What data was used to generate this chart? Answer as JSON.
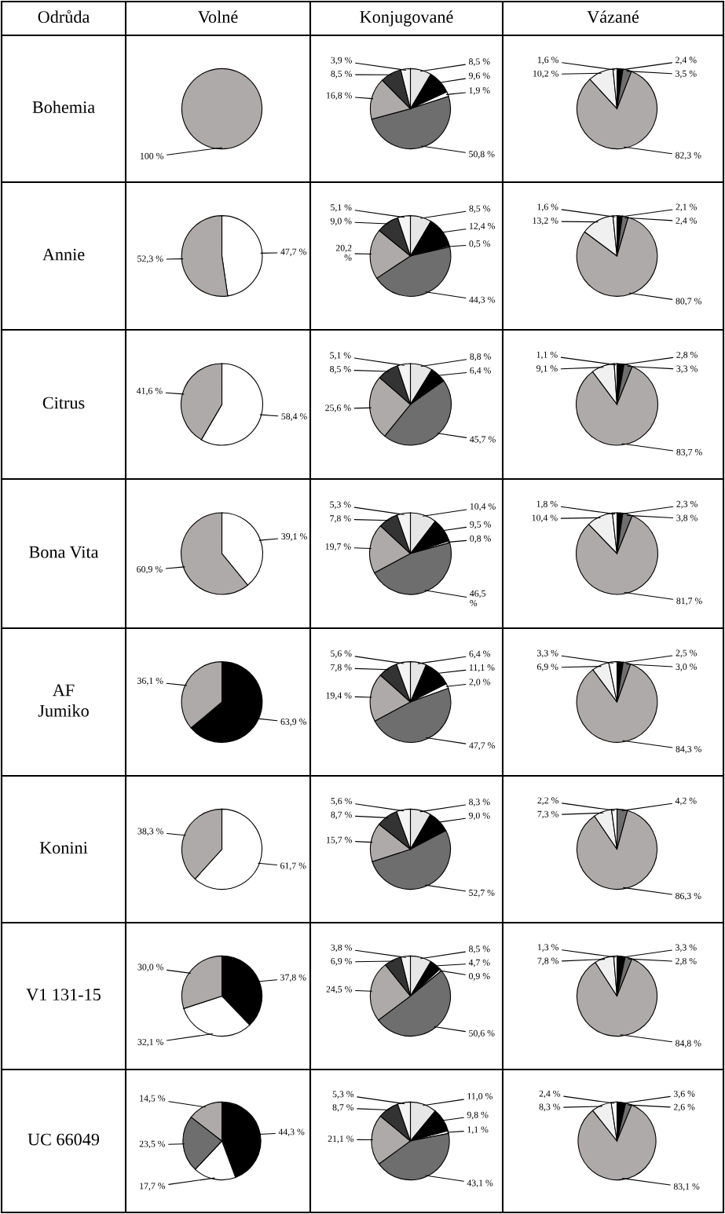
{
  "chart_data": [
    {
      "type": "other",
      "annotations": [
        "Odrůda",
        "Volné",
        "Konjugované",
        "Vázané",
        "Bohemia",
        "Annie",
        "Citrus",
        "Bona Vita",
        "AF\nJumiko",
        "Konini",
        "V1 131-15",
        "UC 66049"
      ]
    },
    {
      "type": "pie",
      "categories": [
        null
      ],
      "values": [
        100
      ],
      "colors": [
        "#aeaaaa"
      ],
      "value_labels": [
        "100 %"
      ]
    },
    {
      "type": "pie",
      "categories": [
        null,
        null,
        null,
        null,
        null,
        null,
        null
      ],
      "values": [
        8.5,
        9.6,
        1.9,
        50.8,
        16.8,
        8.5,
        3.9
      ],
      "colors": [
        "#e6e6e6",
        "#000000",
        "#ffffff",
        "#6e6e6e",
        "#aeaaaa",
        "#333333",
        "#f4f4f4"
      ],
      "value_labels": [
        "8,5 %",
        "9,6 %",
        "1,9 %",
        "50,8 %",
        "16,8 %",
        "8,5 %",
        "3,9 %"
      ]
    },
    {
      "type": "pie",
      "categories": [
        null,
        null,
        null,
        null,
        null
      ],
      "values": [
        2.4,
        3.5,
        82.3,
        10.2,
        1.6
      ],
      "colors": [
        "#000000",
        "#6e6e6e",
        "#aeaaaa",
        "#f0f0f0",
        "#ffffff"
      ],
      "value_labels": [
        "2,4 %",
        "3,5 %",
        "82,3 %",
        "10,2 %",
        "1,6 %"
      ]
    },
    {
      "type": "pie",
      "categories": [
        null,
        null
      ],
      "values": [
        47.7,
        52.3
      ],
      "colors": [
        "#ffffff",
        "#aeaaaa"
      ],
      "value_labels": [
        "47,7 %",
        "52,3 %"
      ]
    },
    {
      "type": "pie",
      "categories": [
        null,
        null,
        null,
        null,
        null,
        null,
        null
      ],
      "values": [
        8.5,
        12.4,
        0.5,
        44.3,
        20.2,
        9.0,
        5.1
      ],
      "colors": [
        "#e6e6e6",
        "#000000",
        "#ffffff",
        "#6e6e6e",
        "#aeaaaa",
        "#333333",
        "#f4f4f4"
      ],
      "value_labels": [
        "8,5 %",
        "12,4 %",
        "0,5 %",
        "44,3 %",
        "20,2\n%",
        "9,0 %",
        "5,1 %"
      ]
    },
    {
      "type": "pie",
      "categories": [
        null,
        null,
        null,
        null,
        null
      ],
      "values": [
        2.1,
        2.4,
        80.7,
        13.2,
        1.6
      ],
      "colors": [
        "#000000",
        "#6e6e6e",
        "#aeaaaa",
        "#f0f0f0",
        "#ffffff"
      ],
      "value_labels": [
        "2,1 %",
        "2,4 %",
        "80,7 %",
        "13,2 %",
        "1,6 %"
      ]
    },
    {
      "type": "pie",
      "categories": [
        null,
        null
      ],
      "values": [
        58.4,
        41.6
      ],
      "colors": [
        "#ffffff",
        "#aeaaaa"
      ],
      "value_labels": [
        "58,4 %",
        "41,6 %"
      ]
    },
    {
      "type": "pie",
      "categories": [
        null,
        null,
        null,
        null,
        null,
        null
      ],
      "values": [
        8.8,
        6.4,
        45.7,
        25.6,
        8.5,
        5.1
      ],
      "colors": [
        "#e6e6e6",
        "#000000",
        "#6e6e6e",
        "#aeaaaa",
        "#333333",
        "#f4f4f4"
      ],
      "value_labels": [
        "8,8 %",
        "6,4 %",
        "45,7 %",
        "25,6 %",
        "8,5 %",
        "5,1 %"
      ]
    },
    {
      "type": "pie",
      "categories": [
        null,
        null,
        null,
        null,
        null
      ],
      "values": [
        2.8,
        3.3,
        83.7,
        9.1,
        1.1
      ],
      "colors": [
        "#000000",
        "#6e6e6e",
        "#aeaaaa",
        "#f0f0f0",
        "#ffffff"
      ],
      "value_labels": [
        "2,8 %",
        "3,3 %",
        "83,7 %",
        "9,1 %",
        "1,1 %"
      ]
    },
    {
      "type": "pie",
      "categories": [
        null,
        null
      ],
      "values": [
        39.1,
        60.9
      ],
      "colors": [
        "#ffffff",
        "#aeaaaa"
      ],
      "value_labels": [
        "39,1 %",
        "60,9 %"
      ]
    },
    {
      "type": "pie",
      "categories": [
        null,
        null,
        null,
        null,
        null,
        null,
        null
      ],
      "values": [
        10.4,
        9.5,
        0.8,
        46.5,
        19.7,
        7.8,
        5.3
      ],
      "colors": [
        "#e6e6e6",
        "#000000",
        "#ffffff",
        "#6e6e6e",
        "#aeaaaa",
        "#333333",
        "#f4f4f4"
      ],
      "value_labels": [
        "10,4 %",
        "9,5 %",
        "0,8 %",
        "46,5\n%",
        "19,7 %",
        "7,8 %",
        "5,3 %"
      ]
    },
    {
      "type": "pie",
      "categories": [
        null,
        null,
        null,
        null,
        null
      ],
      "values": [
        2.3,
        3.8,
        81.7,
        10.4,
        1.8
      ],
      "colors": [
        "#000000",
        "#6e6e6e",
        "#aeaaaa",
        "#f0f0f0",
        "#ffffff"
      ],
      "value_labels": [
        "2,3 %",
        "3,8 %",
        "81,7 %",
        "10,4 %",
        "1,8 %"
      ]
    },
    {
      "type": "pie",
      "categories": [
        null,
        null
      ],
      "values": [
        63.9,
        36.1
      ],
      "colors": [
        "#000000",
        "#aeaaaa"
      ],
      "value_labels": [
        "63,9 %",
        "36,1 %"
      ]
    },
    {
      "type": "pie",
      "categories": [
        null,
        null,
        null,
        null,
        null,
        null,
        null
      ],
      "values": [
        6.4,
        11.1,
        2.0,
        47.7,
        19.4,
        7.8,
        5.6
      ],
      "colors": [
        "#e6e6e6",
        "#000000",
        "#ffffff",
        "#6e6e6e",
        "#aeaaaa",
        "#333333",
        "#f4f4f4"
      ],
      "value_labels": [
        "6,4 %",
        "11,1 %",
        "2,0 %",
        "47,7 %",
        "19,4 %",
        "7,8 %",
        "5,6 %"
      ]
    },
    {
      "type": "pie",
      "categories": [
        null,
        null,
        null,
        null,
        null
      ],
      "values": [
        2.5,
        3.0,
        84.3,
        6.9,
        3.3
      ],
      "colors": [
        "#000000",
        "#6e6e6e",
        "#aeaaaa",
        "#f0f0f0",
        "#ffffff"
      ],
      "value_labels": [
        "2,5 %",
        "3,0 %",
        "84,3 %",
        "6,9 %",
        "3,3 %"
      ]
    },
    {
      "type": "pie",
      "categories": [
        null,
        null
      ],
      "values": [
        61.7,
        38.3
      ],
      "colors": [
        "#ffffff",
        "#aeaaaa"
      ],
      "value_labels": [
        "61,7 %",
        "38,3 %"
      ]
    },
    {
      "type": "pie",
      "categories": [
        null,
        null,
        null,
        null,
        null,
        null
      ],
      "values": [
        8.3,
        9.0,
        52.7,
        15.7,
        8.7,
        5.6
      ],
      "colors": [
        "#e6e6e6",
        "#000000",
        "#6e6e6e",
        "#aeaaaa",
        "#333333",
        "#f4f4f4"
      ],
      "value_labels": [
        "8,3 %",
        "9,0 %",
        "52,7 %",
        "15,7 %",
        "8,7 %",
        "5,6 %"
      ]
    },
    {
      "type": "pie",
      "categories": [
        null,
        null,
        null,
        null
      ],
      "values": [
        4.2,
        86.3,
        7.3,
        2.2
      ],
      "colors": [
        "#6e6e6e",
        "#aeaaaa",
        "#f0f0f0",
        "#ffffff"
      ],
      "value_labels": [
        "4,2 %",
        "86,3 %",
        "7,3 %",
        "2,2 %"
      ]
    },
    {
      "type": "pie",
      "categories": [
        null,
        null,
        null
      ],
      "values": [
        37.8,
        32.1,
        30.0
      ],
      "colors": [
        "#000000",
        "#ffffff",
        "#aeaaaa"
      ],
      "value_labels": [
        "37,8 %",
        "32,1 %",
        "30,0 %"
      ]
    },
    {
      "type": "pie",
      "categories": [
        null,
        null,
        null,
        null,
        null,
        null,
        null
      ],
      "values": [
        8.5,
        4.7,
        0.9,
        50.6,
        24.5,
        6.9,
        3.8
      ],
      "colors": [
        "#e6e6e6",
        "#000000",
        "#ffffff",
        "#6e6e6e",
        "#aeaaaa",
        "#333333",
        "#f4f4f4"
      ],
      "value_labels": [
        "8,5 %",
        "4,7 %",
        "0,9 %",
        "50,6 %",
        "24,5 %",
        "6,9 %",
        "3,8 %"
      ]
    },
    {
      "type": "pie",
      "categories": [
        null,
        null,
        null,
        null,
        null
      ],
      "values": [
        3.3,
        2.8,
        84.8,
        7.8,
        1.3
      ],
      "colors": [
        "#000000",
        "#6e6e6e",
        "#aeaaaa",
        "#f0f0f0",
        "#ffffff"
      ],
      "value_labels": [
        "3,3 %",
        "2,8 %",
        "84,8 %",
        "7,8 %",
        "1,3 %"
      ]
    },
    {
      "type": "pie",
      "categories": [
        null,
        null,
        null,
        null
      ],
      "values": [
        44.3,
        17.7,
        23.5,
        14.5
      ],
      "colors": [
        "#000000",
        "#ffffff",
        "#6e6e6e",
        "#aeaaaa"
      ],
      "value_labels": [
        "44,3 %",
        "17,7 %",
        "23,5 %",
        "14,5 %"
      ]
    },
    {
      "type": "pie",
      "categories": [
        null,
        null,
        null,
        null,
        null,
        null,
        null
      ],
      "values": [
        11.0,
        9.8,
        1.1,
        43.1,
        21.1,
        8.7,
        5.3
      ],
      "colors": [
        "#e6e6e6",
        "#000000",
        "#ffffff",
        "#6e6e6e",
        "#aeaaaa",
        "#333333",
        "#f4f4f4"
      ],
      "value_labels": [
        "11,0 %",
        "9,8 %",
        "1,1 %",
        "43,1 %",
        "21,1 %",
        "8,7 %",
        "5,3 %"
      ]
    },
    {
      "type": "pie",
      "categories": [
        null,
        null,
        null,
        null,
        null
      ],
      "values": [
        3.6,
        2.6,
        83.1,
        8.3,
        2.4
      ],
      "colors": [
        "#000000",
        "#6e6e6e",
        "#aeaaaa",
        "#f0f0f0",
        "#ffffff"
      ],
      "value_labels": [
        "3,6 %",
        "2,6 %",
        "83,1 %",
        "8,3 %",
        "2,4 %"
      ]
    }
  ]
}
